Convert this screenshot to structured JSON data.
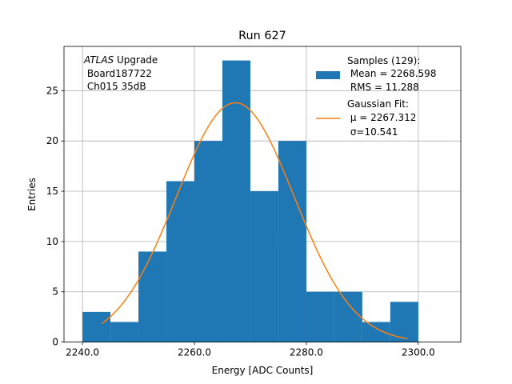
{
  "chart_data": {
    "type": "bar",
    "title": "Run 627",
    "xlabel": "Energy [ADC Counts]",
    "ylabel": "Entries",
    "xlim": [
      2236.7,
      2307.6
    ],
    "ylim": [
      0,
      29.4
    ],
    "grid": true,
    "x_ticks": [
      2240.0,
      2260.0,
      2280.0,
      2300.0
    ],
    "x_tick_labels": [
      "2240.0",
      "2260.0",
      "2280.0",
      "2300.0"
    ],
    "y_ticks": [
      0,
      5,
      10,
      15,
      20,
      25
    ],
    "y_tick_labels": [
      "0",
      "5",
      "10",
      "15",
      "20",
      "25"
    ],
    "bin_edges": [
      2240.0,
      2245.0,
      2250.0,
      2255.0,
      2260.0,
      2265.0,
      2270.0,
      2275.0,
      2280.0,
      2285.0,
      2290.0,
      2295.0,
      2300.0
    ],
    "values": [
      3,
      2,
      9,
      16,
      20,
      28,
      15,
      20,
      5,
      5,
      2,
      4
    ],
    "bar_color": "#1f77b4",
    "fit": {
      "mu": 2267.312,
      "sigma": 10.541,
      "x_range": [
        2243.5,
        2298.0
      ],
      "peak": 23.8,
      "color": "#ff7f0e"
    },
    "annotation": {
      "italic": "ATLAS",
      "line1_rest": " Upgrade",
      "line2": " Board187722",
      "line3": " Ch015 35dB"
    },
    "legend": {
      "placement": "upper right",
      "samples_label": "Samples (129):",
      "samples_mean": " Mean = 2268.598",
      "samples_rms": " RMS = 11.288",
      "fit_label": "Gaussian Fit:",
      "fit_mu": " μ = 2267.312",
      "fit_sigma": " σ=10.541"
    }
  }
}
